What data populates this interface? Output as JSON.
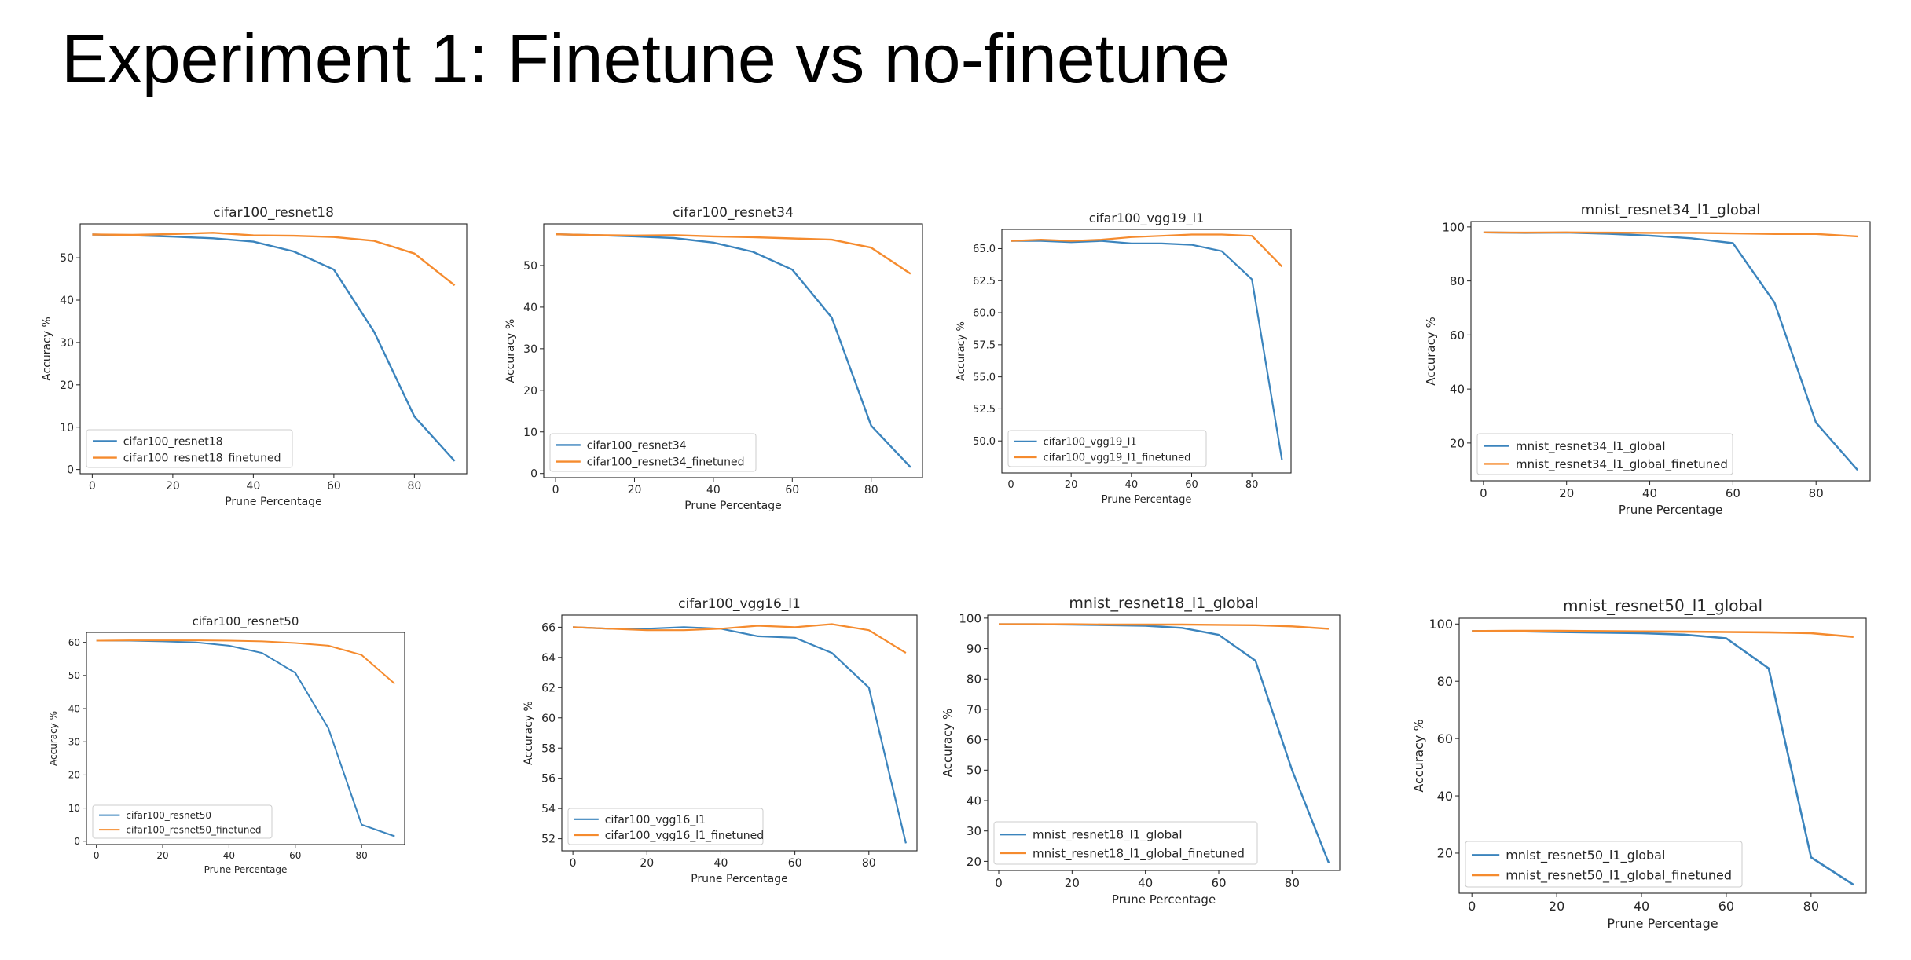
{
  "slide": {
    "title": "Experiment 1: Finetune vs no-finetune"
  },
  "colors": {
    "base": "#3b84bd",
    "finetuned": "#f58b2e"
  },
  "chart_data": [
    {
      "type": "line",
      "title": "cifar100_resnet18",
      "xlabel": "Prune Percentage",
      "ylabel": "Accuracy %",
      "xlim": [
        -3,
        93
      ],
      "ylim": [
        -1,
        58
      ],
      "xticks": [
        0,
        20,
        40,
        60,
        80
      ],
      "yticks": [
        0,
        10,
        20,
        30,
        40,
        50
      ],
      "grid": false,
      "legend_position": "lower-left",
      "x": [
        0,
        10,
        20,
        30,
        40,
        50,
        60,
        70,
        80,
        90
      ],
      "series": [
        {
          "name": "cifar100_resnet18",
          "values": [
            55.5,
            55.3,
            55.0,
            54.6,
            53.8,
            51.5,
            47.2,
            32.5,
            12.5,
            2.0
          ]
        },
        {
          "name": "cifar100_resnet18_finetuned",
          "values": [
            55.5,
            55.4,
            55.6,
            55.9,
            55.3,
            55.2,
            54.9,
            54.0,
            51.0,
            43.5
          ]
        }
      ]
    },
    {
      "type": "line",
      "title": "cifar100_resnet34",
      "xlabel": "Prune Percentage",
      "ylabel": "Accuracy %",
      "xlim": [
        -3,
        93
      ],
      "ylim": [
        -1,
        60
      ],
      "xticks": [
        0,
        20,
        40,
        60,
        80
      ],
      "yticks": [
        0,
        10,
        20,
        30,
        40,
        50
      ],
      "grid": false,
      "legend_position": "lower-left",
      "x": [
        0,
        10,
        20,
        30,
        40,
        50,
        60,
        70,
        80,
        90
      ],
      "series": [
        {
          "name": "cifar100_resnet34",
          "values": [
            57.5,
            57.3,
            57.0,
            56.6,
            55.5,
            53.3,
            49.0,
            37.5,
            11.5,
            1.5
          ]
        },
        {
          "name": "cifar100_resnet34_finetuned",
          "values": [
            57.5,
            57.3,
            57.2,
            57.3,
            57.0,
            56.8,
            56.5,
            56.2,
            54.3,
            48.0
          ]
        }
      ]
    },
    {
      "type": "line",
      "title": "cifar100_vgg19_l1",
      "xlabel": "Prune Percentage",
      "ylabel": "Accuracy %",
      "xlim": [
        -3,
        93
      ],
      "ylim": [
        47.5,
        66.5
      ],
      "xticks": [
        0,
        20,
        40,
        60,
        80
      ],
      "yticks": [
        50.0,
        52.5,
        55.0,
        57.5,
        60.0,
        62.5,
        65.0
      ],
      "ytick_labels": [
        "50.0",
        "52.5",
        "55.0",
        "57.5",
        "60.0",
        "62.5",
        "65.0"
      ],
      "grid": false,
      "legend_position": "lower-left",
      "x": [
        0,
        10,
        20,
        30,
        40,
        50,
        60,
        70,
        80,
        90
      ],
      "series": [
        {
          "name": "cifar100_vgg19_l1",
          "values": [
            65.6,
            65.6,
            65.5,
            65.6,
            65.4,
            65.4,
            65.3,
            64.8,
            62.6,
            48.5
          ]
        },
        {
          "name": "cifar100_vgg19_l1_finetuned",
          "values": [
            65.6,
            65.7,
            65.6,
            65.7,
            65.9,
            66.0,
            66.1,
            66.1,
            66.0,
            63.6
          ]
        }
      ]
    },
    {
      "type": "line",
      "title": "mnist_resnet34_l1_global",
      "xlabel": "Prune Percentage",
      "ylabel": "Accuracy %",
      "xlim": [
        -3,
        93
      ],
      "ylim": [
        6,
        102
      ],
      "xticks": [
        0,
        20,
        40,
        60,
        80
      ],
      "yticks": [
        20,
        40,
        60,
        80,
        100
      ],
      "grid": false,
      "legend_position": "lower-left",
      "x": [
        0,
        10,
        20,
        30,
        40,
        50,
        60,
        70,
        80,
        90
      ],
      "series": [
        {
          "name": "mnist_resnet34_l1_global",
          "values": [
            98.0,
            97.8,
            97.9,
            97.5,
            96.8,
            95.8,
            94.0,
            72.0,
            27.5,
            10.0
          ]
        },
        {
          "name": "mnist_resnet34_l1_global_finetuned",
          "values": [
            98.0,
            97.9,
            98.0,
            97.9,
            97.8,
            97.8,
            97.6,
            97.4,
            97.4,
            96.5
          ]
        }
      ]
    },
    {
      "type": "line",
      "title": "cifar100_resnet50",
      "xlabel": "Prune Percentage",
      "ylabel": "Accuracy %",
      "xlim": [
        -3,
        93
      ],
      "ylim": [
        -1,
        63
      ],
      "xticks": [
        0,
        20,
        40,
        60,
        80
      ],
      "yticks": [
        0,
        10,
        20,
        30,
        40,
        50,
        60
      ],
      "grid": false,
      "legend_position": "lower-left",
      "x": [
        0,
        10,
        20,
        30,
        40,
        50,
        60,
        70,
        80,
        90
      ],
      "series": [
        {
          "name": "cifar100_resnet50",
          "values": [
            60.5,
            60.5,
            60.3,
            60.0,
            59.0,
            56.8,
            50.8,
            34.0,
            5.0,
            1.5
          ]
        },
        {
          "name": "cifar100_resnet50_finetuned",
          "values": [
            60.5,
            60.6,
            60.6,
            60.6,
            60.5,
            60.3,
            59.8,
            59.0,
            56.2,
            47.5
          ]
        }
      ]
    },
    {
      "type": "line",
      "title": "cifar100_vgg16_l1",
      "xlabel": "Prune Percentage",
      "ylabel": "Accuracy %",
      "xlim": [
        -3,
        93
      ],
      "ylim": [
        51.2,
        66.8
      ],
      "xticks": [
        0,
        20,
        40,
        60,
        80
      ],
      "yticks": [
        52,
        54,
        56,
        58,
        60,
        62,
        64,
        66
      ],
      "grid": false,
      "legend_position": "lower-left",
      "x": [
        0,
        10,
        20,
        30,
        40,
        50,
        60,
        70,
        80,
        90
      ],
      "series": [
        {
          "name": "cifar100_vgg16_l1",
          "values": [
            66.0,
            65.9,
            65.9,
            66.0,
            65.9,
            65.4,
            65.3,
            64.3,
            62.0,
            51.7
          ]
        },
        {
          "name": "cifar100_vgg16_l1_finetuned",
          "values": [
            66.0,
            65.9,
            65.8,
            65.8,
            65.9,
            66.1,
            66.0,
            66.2,
            65.8,
            64.3
          ]
        }
      ]
    },
    {
      "type": "line",
      "title": "mnist_resnet18_l1_global",
      "xlabel": "Prune Percentage",
      "ylabel": "Accuracy %",
      "xlim": [
        -3,
        93
      ],
      "ylim": [
        17,
        101
      ],
      "xticks": [
        0,
        20,
        40,
        60,
        80
      ],
      "yticks": [
        20,
        30,
        40,
        50,
        60,
        70,
        80,
        90,
        100
      ],
      "grid": false,
      "legend_position": "lower-left",
      "x": [
        0,
        10,
        20,
        30,
        40,
        50,
        60,
        70,
        80,
        90
      ],
      "series": [
        {
          "name": "mnist_resnet18_l1_global",
          "values": [
            98.0,
            98.0,
            97.9,
            97.7,
            97.5,
            96.8,
            94.5,
            86.0,
            50.0,
            19.5
          ]
        },
        {
          "name": "mnist_resnet18_l1_global_finetuned",
          "values": [
            98.0,
            98.0,
            98.0,
            97.9,
            97.9,
            97.9,
            97.8,
            97.7,
            97.3,
            96.5
          ]
        }
      ]
    },
    {
      "type": "line",
      "title": "mnist_resnet50_l1_global",
      "xlabel": "Prune Percentage",
      "ylabel": "Accuracy %",
      "xlim": [
        -3,
        93
      ],
      "ylim": [
        6,
        102
      ],
      "xticks": [
        0,
        20,
        40,
        60,
        80
      ],
      "yticks": [
        20,
        40,
        60,
        80,
        100
      ],
      "grid": false,
      "legend_position": "lower-left",
      "x": [
        0,
        10,
        20,
        30,
        40,
        50,
        60,
        70,
        80,
        90
      ],
      "series": [
        {
          "name": "mnist_resnet50_l1_global",
          "values": [
            97.5,
            97.5,
            97.2,
            97.0,
            96.8,
            96.3,
            95.0,
            84.5,
            18.5,
            9.0
          ]
        },
        {
          "name": "mnist_resnet50_l1_global_finetuned",
          "values": [
            97.5,
            97.6,
            97.6,
            97.5,
            97.4,
            97.3,
            97.2,
            97.1,
            96.8,
            95.5
          ]
        }
      ]
    }
  ]
}
